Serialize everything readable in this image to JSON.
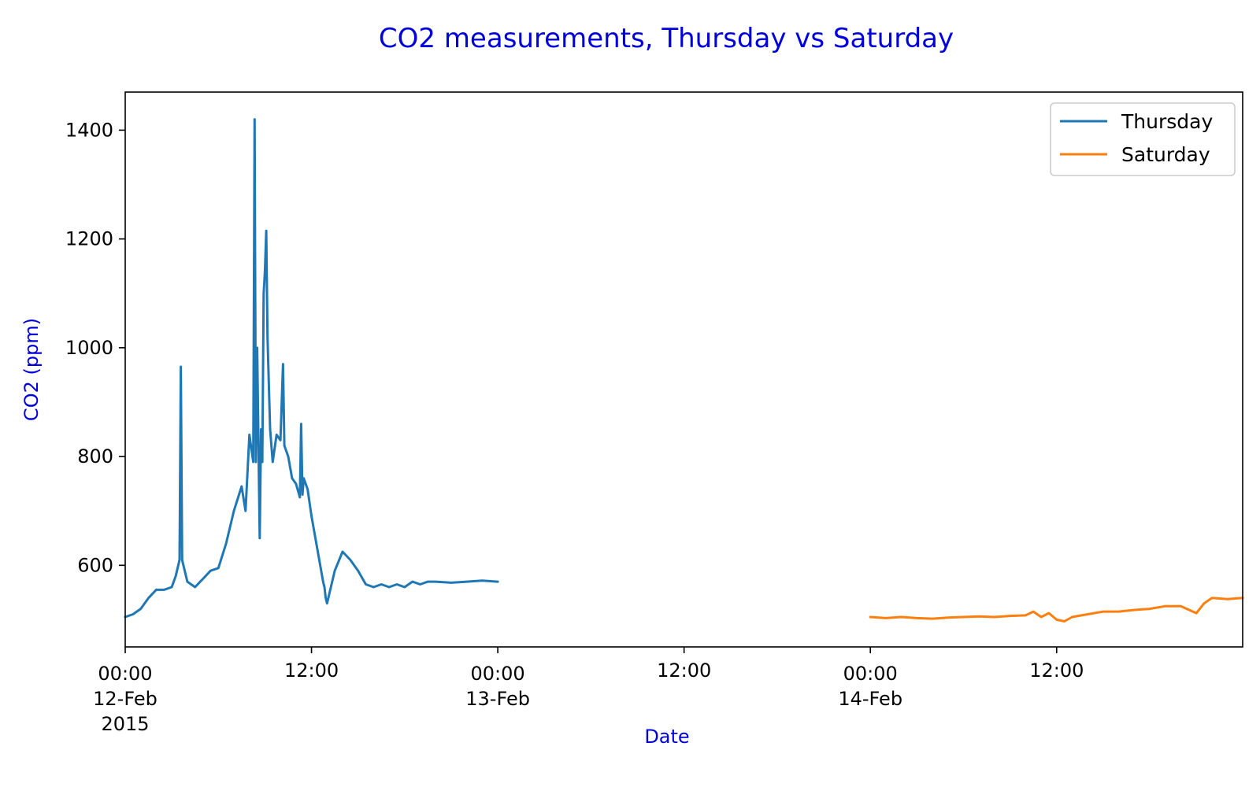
{
  "colors": {
    "label": "#0000dd",
    "thursday": "#1f77b4",
    "saturday": "#ff7f0e",
    "axis": "#000000",
    "legend_border": "#cccccc"
  },
  "chart_data": {
    "type": "line",
    "title": "CO2 measurements, Thursday vs Saturday",
    "xlabel": "Date",
    "ylabel": "CO2 (ppm)",
    "x_axis_type": "datetime",
    "xlim": [
      "2015-02-12 00:00",
      "2015-02-14 23:59"
    ],
    "ylim": [
      450,
      1470
    ],
    "grid": false,
    "legend_position": "top-right",
    "y_ticks": [
      600,
      800,
      1000,
      1200,
      1400
    ],
    "x_ticks": [
      {
        "at": "2015-02-12 00:00",
        "lines": [
          "00:00",
          "12-Feb",
          "2015"
        ]
      },
      {
        "at": "2015-02-12 12:00",
        "lines": [
          "12:00"
        ]
      },
      {
        "at": "2015-02-13 00:00",
        "lines": [
          "00:00",
          "13-Feb"
        ]
      },
      {
        "at": "2015-02-13 12:00",
        "lines": [
          "12:00"
        ]
      },
      {
        "at": "2015-02-14 00:00",
        "lines": [
          "00:00",
          "14-Feb"
        ]
      },
      {
        "at": "2015-02-14 12:00",
        "lines": [
          "12:00"
        ]
      }
    ],
    "series": [
      {
        "name": "Thursday",
        "color": "#1f77b4",
        "x": [
          "2015-02-12 00:00",
          "2015-02-12 00:30",
          "2015-02-12 01:00",
          "2015-02-12 01:30",
          "2015-02-12 02:00",
          "2015-02-12 02:30",
          "2015-02-12 03:00",
          "2015-02-12 03:15",
          "2015-02-12 03:30",
          "2015-02-12 03:35",
          "2015-02-12 03:40",
          "2015-02-12 03:45",
          "2015-02-12 04:00",
          "2015-02-12 04:30",
          "2015-02-12 05:00",
          "2015-02-12 05:30",
          "2015-02-12 06:00",
          "2015-02-12 06:30",
          "2015-02-12 07:00",
          "2015-02-12 07:30",
          "2015-02-12 07:45",
          "2015-02-12 08:00",
          "2015-02-12 08:15",
          "2015-02-12 08:20",
          "2015-02-12 08:25",
          "2015-02-12 08:30",
          "2015-02-12 08:40",
          "2015-02-12 08:45",
          "2015-02-12 08:50",
          "2015-02-12 08:55",
          "2015-02-12 09:00",
          "2015-02-12 09:05",
          "2015-02-12 09:10",
          "2015-02-12 09:20",
          "2015-02-12 09:30",
          "2015-02-12 09:45",
          "2015-02-12 10:00",
          "2015-02-12 10:10",
          "2015-02-12 10:15",
          "2015-02-12 10:30",
          "2015-02-12 10:45",
          "2015-02-12 11:00",
          "2015-02-12 11:15",
          "2015-02-12 11:20",
          "2015-02-12 11:25",
          "2015-02-12 11:30",
          "2015-02-12 11:45",
          "2015-02-12 12:00",
          "2015-02-12 12:30",
          "2015-02-12 12:45",
          "2015-02-12 12:50",
          "2015-02-12 12:55",
          "2015-02-12 13:00",
          "2015-02-12 13:30",
          "2015-02-12 14:00",
          "2015-02-12 14:30",
          "2015-02-12 15:00",
          "2015-02-12 15:30",
          "2015-02-12 16:00",
          "2015-02-12 16:30",
          "2015-02-12 17:00",
          "2015-02-12 17:30",
          "2015-02-12 18:00",
          "2015-02-12 18:30",
          "2015-02-12 19:00",
          "2015-02-12 19:30",
          "2015-02-12 20:00",
          "2015-02-12 21:00",
          "2015-02-12 22:00",
          "2015-02-12 23:00",
          "2015-02-13 00:00"
        ],
        "values": [
          505,
          510,
          520,
          540,
          555,
          555,
          560,
          580,
          610,
          965,
          610,
          600,
          570,
          560,
          575,
          590,
          595,
          640,
          700,
          745,
          700,
          840,
          790,
          1420,
          790,
          1000,
          650,
          850,
          790,
          1100,
          1140,
          1215,
          1020,
          850,
          790,
          840,
          830,
          970,
          820,
          800,
          760,
          750,
          725,
          860,
          730,
          760,
          740,
          690,
          610,
          570,
          560,
          540,
          530,
          590,
          625,
          610,
          590,
          565,
          560,
          565,
          560,
          565,
          560,
          570,
          565,
          570,
          570,
          568,
          570,
          572,
          570
        ]
      },
      {
        "name": "Saturday",
        "color": "#ff7f0e",
        "x": [
          "2015-02-14 00:00",
          "2015-02-14 01:00",
          "2015-02-14 02:00",
          "2015-02-14 03:00",
          "2015-02-14 04:00",
          "2015-02-14 05:00",
          "2015-02-14 06:00",
          "2015-02-14 07:00",
          "2015-02-14 08:00",
          "2015-02-14 09:00",
          "2015-02-14 10:00",
          "2015-02-14 10:30",
          "2015-02-14 11:00",
          "2015-02-14 11:30",
          "2015-02-14 12:00",
          "2015-02-14 12:30",
          "2015-02-14 13:00",
          "2015-02-14 14:00",
          "2015-02-14 15:00",
          "2015-02-14 16:00",
          "2015-02-14 17:00",
          "2015-02-14 18:00",
          "2015-02-14 19:00",
          "2015-02-14 20:00",
          "2015-02-14 21:00",
          "2015-02-14 21:30",
          "2015-02-14 22:00",
          "2015-02-14 23:00",
          "2015-02-14 23:59"
        ],
        "values": [
          505,
          503,
          505,
          503,
          502,
          504,
          505,
          506,
          505,
          507,
          508,
          515,
          505,
          512,
          500,
          497,
          505,
          510,
          515,
          515,
          518,
          520,
          525,
          525,
          512,
          530,
          540,
          538,
          540
        ]
      }
    ]
  }
}
